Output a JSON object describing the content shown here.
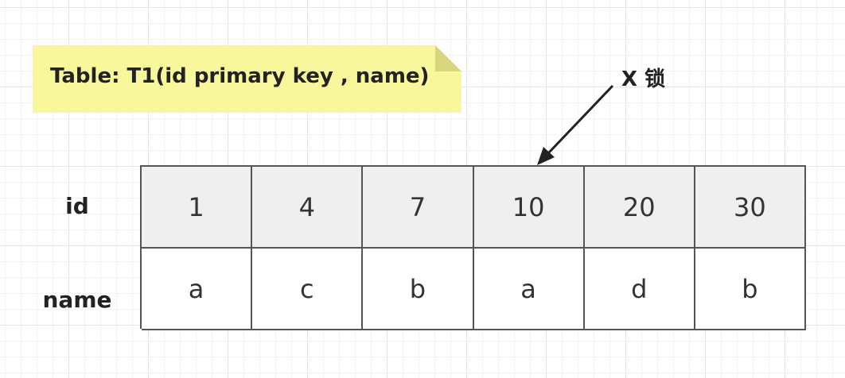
{
  "note": {
    "text": "Table: T1(id primary key , name)",
    "color": "#f8f79b"
  },
  "lock": {
    "label": "X 锁",
    "target_id": "10"
  },
  "table": {
    "row_labels": {
      "id": "id",
      "name": "name"
    },
    "ids": [
      "1",
      "4",
      "7",
      "10",
      "20",
      "30"
    ],
    "names": [
      "a",
      "c",
      "b",
      "a",
      "d",
      "b"
    ]
  },
  "colors": {
    "header_row": "#efefef",
    "border": "#555555",
    "grid": "#e6e6e6"
  }
}
